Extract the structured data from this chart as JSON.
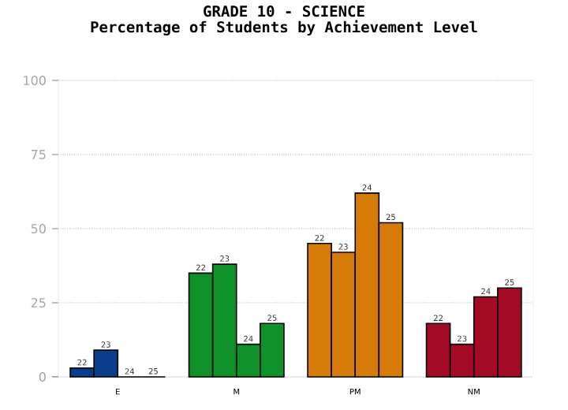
{
  "chart_data": {
    "type": "bar",
    "title": "GRADE 10 - SCIENCE",
    "subtitle": "Percentage of Students by Achievement Level",
    "categories": [
      "E",
      "M",
      "PM",
      "NM"
    ],
    "series": [
      {
        "name": "22",
        "colors": [
          "#0a3d8c",
          "#0e9129",
          "#d67a08",
          "#a30a23"
        ],
        "values": [
          3,
          35,
          45,
          18
        ]
      },
      {
        "name": "23",
        "colors": [
          "#0a3d8c",
          "#0e9129",
          "#d67a08",
          "#a30a23"
        ],
        "values": [
          9,
          38,
          42,
          11
        ]
      },
      {
        "name": "24",
        "colors": [
          "#0a3d8c",
          "#0e9129",
          "#d67a08",
          "#a30a23"
        ],
        "values": [
          0,
          11,
          62,
          27
        ]
      },
      {
        "name": "25",
        "colors": [
          "#0a3d8c",
          "#0e9129",
          "#d67a08",
          "#a30a23"
        ],
        "values": [
          0,
          18,
          52,
          30
        ]
      }
    ],
    "ylim": [
      0,
      100
    ],
    "yticks": [
      0,
      25,
      50,
      75,
      100
    ],
    "grid": "y"
  }
}
